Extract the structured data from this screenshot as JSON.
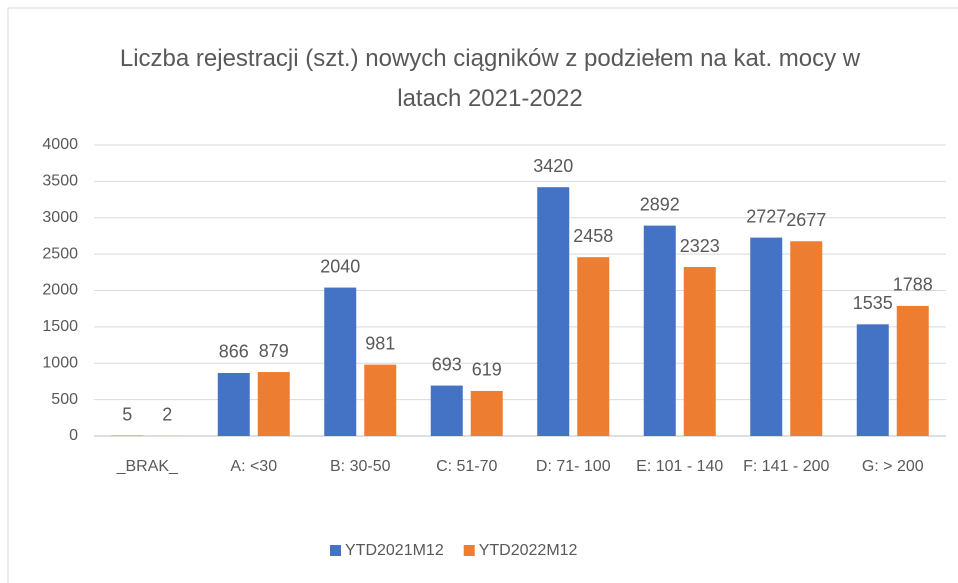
{
  "chart_data": {
    "type": "bar",
    "title": "Liczba rejestracji (szt.) nowych ciągników z podziełem na kat. mocy w latach 2021-2022",
    "categories": [
      "_BRAK_",
      "A: <30",
      "B: 30-50",
      "C: 51-70",
      "D: 71- 100",
      "E: 101 - 140",
      "F: 141 - 200",
      "G: > 200"
    ],
    "series": [
      {
        "name": "YTD2021M12",
        "color": "#4472c4",
        "values": [
          5,
          866,
          2040,
          693,
          3420,
          2892,
          2727,
          1535
        ]
      },
      {
        "name": "YTD2022M12",
        "color": "#ed7d31",
        "values": [
          2,
          879,
          981,
          619,
          2458,
          2323,
          2677,
          1788
        ]
      }
    ],
    "ylim": [
      0,
      4000
    ],
    "yticks": [
      0,
      500,
      1000,
      1500,
      2000,
      2500,
      3000,
      3500,
      4000
    ],
    "grid": true,
    "legend": "bottom"
  }
}
